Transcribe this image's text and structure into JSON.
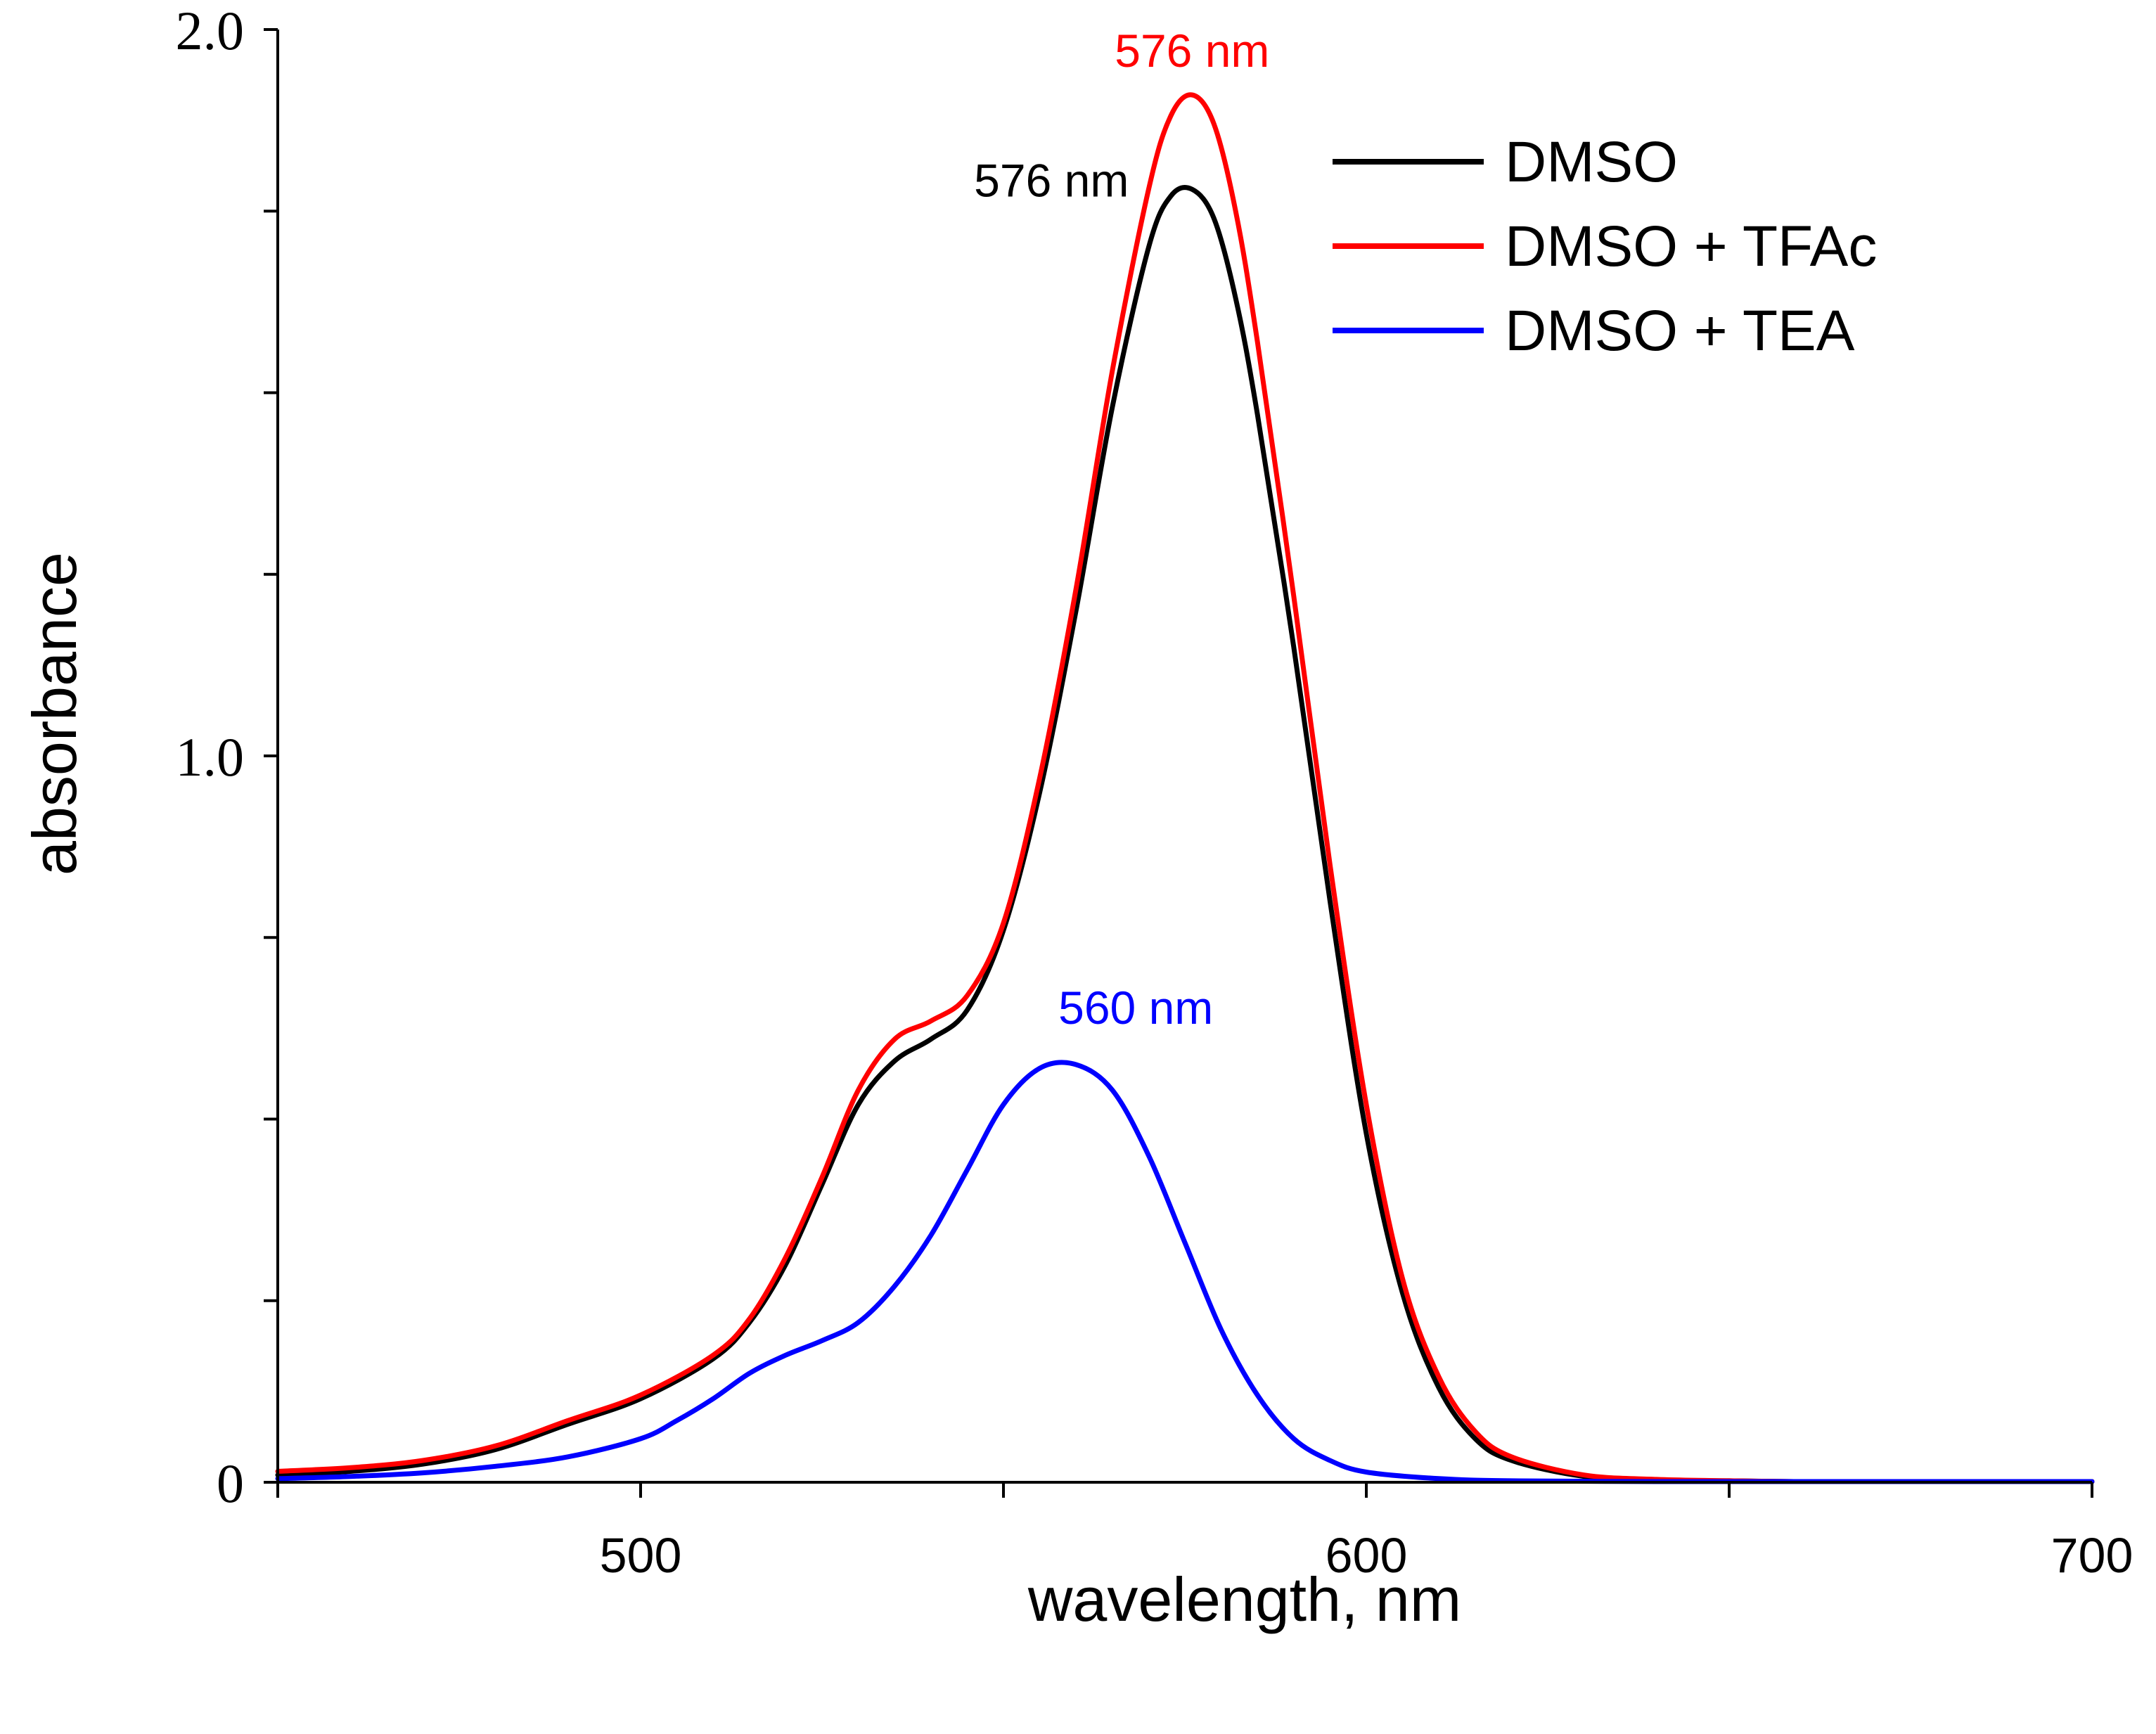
{
  "chart_data": {
    "type": "line",
    "xlabel": "wavelength, nm",
    "ylabel": "absorbance",
    "xlim": [
      450,
      700
    ],
    "ylim": [
      0,
      2.0
    ],
    "x_ticks": [
      450,
      500,
      550,
      600,
      650,
      700
    ],
    "x_tick_labels": [
      {
        "value": 500,
        "label": "500"
      },
      {
        "value": 600,
        "label": "600"
      },
      {
        "value": 700,
        "label": "700"
      }
    ],
    "y_ticks": [
      0,
      0.25,
      0.5,
      0.75,
      1.0,
      1.25,
      1.5,
      1.75,
      2.0
    ],
    "y_tick_labels": [
      {
        "value": 0,
        "label": "0"
      },
      {
        "value": 1.0,
        "label": "1.0"
      },
      {
        "value": 2.0,
        "label": "2.0"
      }
    ],
    "legend_position": "top-right",
    "series": [
      {
        "name": "DMSO",
        "color": "#000000",
        "x": [
          450,
          460,
          470,
          480,
          490,
          500,
          510,
          515,
          520,
          525,
          530,
          535,
          540,
          545,
          550,
          555,
          560,
          565,
          570,
          573,
          576,
          579,
          582,
          585,
          590,
          595,
          600,
          605,
          610,
          615,
          620,
          630,
          640,
          650,
          660,
          680,
          700
        ],
        "y": [
          0.01,
          0.015,
          0.025,
          0.045,
          0.08,
          0.115,
          0.17,
          0.22,
          0.3,
          0.41,
          0.52,
          0.58,
          0.61,
          0.65,
          0.76,
          0.95,
          1.2,
          1.48,
          1.7,
          1.77,
          1.78,
          1.74,
          1.63,
          1.47,
          1.15,
          0.8,
          0.48,
          0.26,
          0.13,
          0.06,
          0.03,
          0.008,
          0.003,
          0.002,
          0.001,
          0.001,
          0.001
        ]
      },
      {
        "name": "DMSO + TFAc",
        "color": "#ff0000",
        "x": [
          450,
          460,
          470,
          480,
          490,
          500,
          510,
          515,
          520,
          525,
          530,
          535,
          540,
          545,
          550,
          555,
          560,
          565,
          570,
          573,
          576,
          579,
          582,
          585,
          590,
          595,
          600,
          605,
          610,
          615,
          620,
          630,
          640,
          650,
          660,
          680,
          700
        ],
        "y": [
          0.015,
          0.02,
          0.03,
          0.05,
          0.085,
          0.12,
          0.175,
          0.225,
          0.31,
          0.42,
          0.54,
          0.61,
          0.635,
          0.67,
          0.77,
          0.97,
          1.23,
          1.53,
          1.78,
          1.88,
          1.91,
          1.87,
          1.75,
          1.57,
          1.22,
          0.85,
          0.52,
          0.28,
          0.145,
          0.07,
          0.035,
          0.01,
          0.004,
          0.002,
          0.001,
          0.001,
          0.001
        ]
      },
      {
        "name": "DMSO + TEA",
        "color": "#0000ff",
        "x": [
          450,
          460,
          470,
          480,
          490,
          500,
          505,
          510,
          515,
          520,
          525,
          530,
          535,
          540,
          545,
          550,
          555,
          560,
          565,
          570,
          575,
          580,
          585,
          590,
          595,
          600,
          610,
          620,
          640,
          660,
          700
        ],
        "y": [
          0.005,
          0.008,
          0.013,
          0.022,
          0.035,
          0.06,
          0.085,
          0.115,
          0.15,
          0.175,
          0.195,
          0.22,
          0.27,
          0.34,
          0.43,
          0.52,
          0.57,
          0.575,
          0.54,
          0.45,
          0.33,
          0.21,
          0.12,
          0.06,
          0.03,
          0.014,
          0.005,
          0.002,
          0.001,
          0.001,
          0.001
        ]
      }
    ],
    "annotations": [
      {
        "text": "576 nm",
        "x": 576,
        "y": 1.91,
        "color": "#ff0000",
        "series": "DMSO + TFAc"
      },
      {
        "text": "576 nm",
        "x": 576,
        "y": 1.78,
        "color": "#000000",
        "series": "DMSO"
      },
      {
        "text": "560 nm",
        "x": 560,
        "y": 0.575,
        "color": "#0000ff",
        "series": "DMSO + TEA"
      }
    ]
  }
}
